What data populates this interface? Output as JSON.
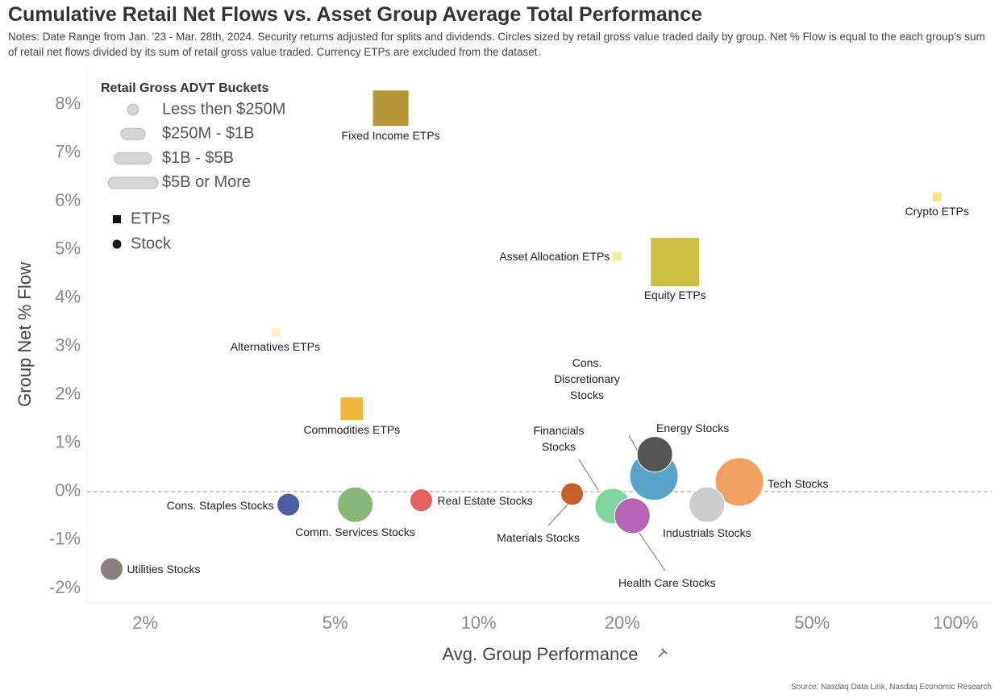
{
  "chart_data": {
    "type": "scatter",
    "title": "Cumulative Retail Net Flows vs. Asset Group Average Total Performance",
    "subtitle": "Notes: Date Range from Jan. '23 - Mar. 28th, 2024. Security returns adjusted for splits and dividends. Circles sized by retail gross value traded daily by group. Net % Flow is equal to the each group's sum of retail net flows divided by its sum of retail gross value traded. Currency ETPs are excluded from the dataset.",
    "source": "Source: Nasdaq Data Link, Nasdaq Economic Research",
    "x_label": "Avg. Group Performance",
    "y_label": "Group Net % Flow",
    "x_scale": "log",
    "xlim": [
      1.51,
      119
    ],
    "ylim": [
      -2.3,
      8.74
    ],
    "xticks": [
      {
        "value": 2,
        "label": "2%"
      },
      {
        "value": 5,
        "label": "5%"
      },
      {
        "value": 10,
        "label": "10%"
      },
      {
        "value": 20,
        "label": "20%"
      },
      {
        "value": 50,
        "label": "50%"
      },
      {
        "value": 100,
        "label": "100%"
      }
    ],
    "yticks": [
      {
        "value": -2,
        "label": "-2%"
      },
      {
        "value": -1,
        "label": "-1%"
      },
      {
        "value": 0,
        "label": "0%"
      },
      {
        "value": 1,
        "label": "1%"
      },
      {
        "value": 2,
        "label": "2%"
      },
      {
        "value": 3,
        "label": "3%"
      },
      {
        "value": 4,
        "label": "4%"
      },
      {
        "value": 5,
        "label": "5%"
      },
      {
        "value": 6,
        "label": "6%"
      },
      {
        "value": 7,
        "label": "7%"
      },
      {
        "value": 8,
        "label": "8%"
      }
    ],
    "reference_line": 0,
    "size_legend_title": "Retail Gross ADVT Buckets",
    "size_buckets": [
      "Less then $250M",
      "$250M - $1B",
      "$1B - $5B",
      "$5B or More"
    ],
    "shapes": [
      "ETPs",
      "Stock"
    ],
    "points": [
      {
        "name": "Fixed Income ETPs",
        "x": 6.54,
        "y": 7.92,
        "shape": "ETPs",
        "bucket": "$1B - $5B",
        "color": "#b5973a"
      },
      {
        "name": "Crypto ETPs",
        "x": 91.4,
        "y": 6.09,
        "shape": "ETPs",
        "bucket": "Less then $250M",
        "color": "#f7e57c"
      },
      {
        "name": "Asset Allocation ETPs",
        "x": 19.5,
        "y": 4.86,
        "shape": "ETPs",
        "bucket": "Less then $250M",
        "color": "#f6ec9f"
      },
      {
        "name": "Equity ETPs",
        "x": 25.8,
        "y": 4.74,
        "shape": "ETPs",
        "bucket": "$5B or More",
        "color": "#c9bf42"
      },
      {
        "name": "Alternatives ETPs",
        "x": 3.76,
        "y": 3.29,
        "shape": "ETPs",
        "bucket": "Less then $250M",
        "color": "#fbf0c0"
      },
      {
        "name": "Commodities ETPs",
        "x": 5.42,
        "y": 1.71,
        "shape": "ETPs",
        "bucket": "$250M - $1B",
        "color": "#f1b73c"
      },
      {
        "name": "Cons. Discretionary Stocks",
        "x": 23.3,
        "y": 0.32,
        "shape": "Stock",
        "bucket": "$5B or More",
        "color": "#5aa3c9"
      },
      {
        "name": "Energy Stocks",
        "x": 23.4,
        "y": 0.77,
        "shape": "Stock",
        "bucket": "$1B - $5B",
        "color": "#555555"
      },
      {
        "name": "Tech Stocks",
        "x": 35.2,
        "y": 0.2,
        "shape": "Stock",
        "bucket": "$5B or More",
        "color": "#f0a060"
      },
      {
        "name": "Industrials Stocks",
        "x": 30.1,
        "y": -0.27,
        "shape": "Stock",
        "bucket": "$1B - $5B",
        "color": "#cccccc"
      },
      {
        "name": "Financials Stocks",
        "x": 19.1,
        "y": -0.3,
        "shape": "Stock",
        "bucket": "$1B - $5B",
        "color": "#7fd49d"
      },
      {
        "name": "Health Care Stocks",
        "x": 21.0,
        "y": -0.5,
        "shape": "Stock",
        "bucket": "$1B - $5B",
        "color": "#b565b3"
      },
      {
        "name": "Materials Stocks",
        "x": 15.7,
        "y": -0.05,
        "shape": "Stock",
        "bucket": "$250M - $1B",
        "color": "#c4612a"
      },
      {
        "name": "Real Estate Stocks",
        "x": 7.58,
        "y": -0.18,
        "shape": "Stock",
        "bucket": "$250M - $1B",
        "color": "#e4605f"
      },
      {
        "name": "Comm. Services Stocks",
        "x": 5.51,
        "y": -0.27,
        "shape": "Stock",
        "bucket": "$1B - $5B",
        "color": "#88b878"
      },
      {
        "name": "Cons. Staples Stocks",
        "x": 3.99,
        "y": -0.27,
        "shape": "Stock",
        "bucket": "$250M - $1B",
        "color": "#4a5fa0"
      },
      {
        "name": "Utilities Stocks",
        "x": 1.7,
        "y": -1.6,
        "shape": "Stock",
        "bucket": "$250M - $1B",
        "color": "#8a7f7f"
      }
    ]
  }
}
